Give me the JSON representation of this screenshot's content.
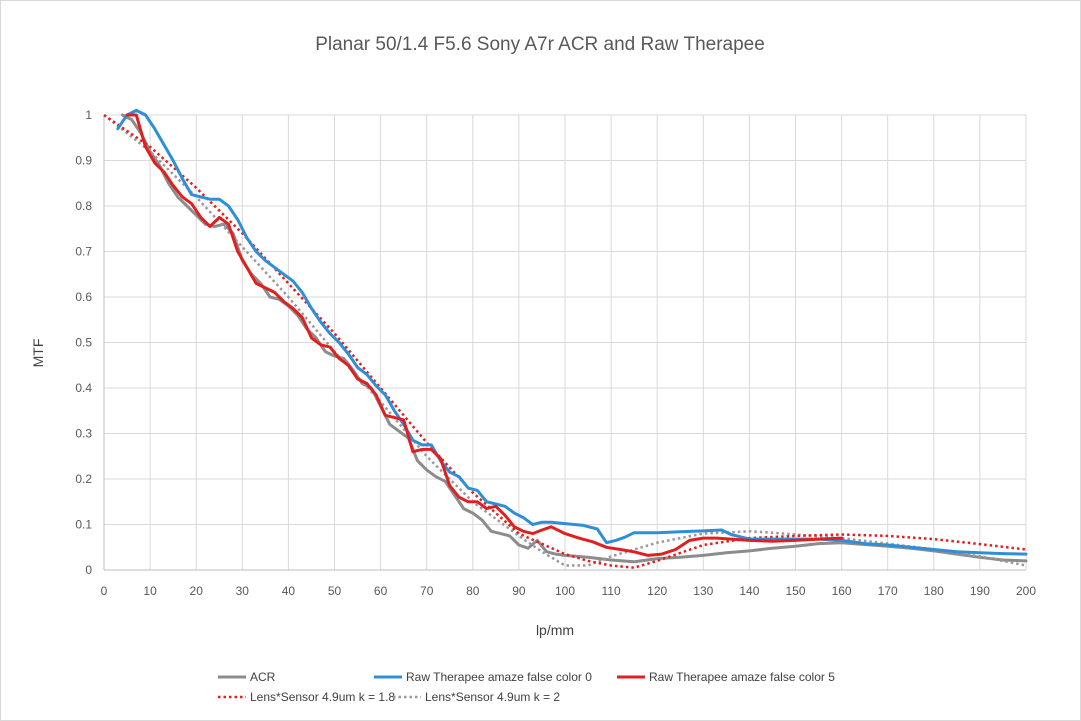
{
  "chart_data": {
    "type": "line",
    "title": "Planar 50/1.4 F5.6 Sony A7r ACR and Raw Therapee",
    "xlabel": "lp/mm",
    "ylabel": "MTF",
    "xlim": [
      0,
      200
    ],
    "ylim": [
      0,
      1
    ],
    "xticks": [
      0,
      10,
      20,
      30,
      40,
      50,
      60,
      70,
      80,
      90,
      100,
      110,
      120,
      130,
      140,
      150,
      160,
      170,
      180,
      190,
      200
    ],
    "yticks": [
      0,
      0.1,
      0.2,
      0.3,
      0.4,
      0.5,
      0.6,
      0.7,
      0.8,
      0.9,
      1
    ],
    "grid": {
      "vertical": true,
      "horizontal": true
    },
    "legend_position": "bottom",
    "series": [
      {
        "name": "ACR",
        "color": "#8c8c8c",
        "dash": "solid",
        "x": [
          4,
          6,
          8,
          10,
          12,
          14,
          16,
          18,
          20,
          22,
          24,
          26,
          28,
          30,
          32,
          34,
          36,
          38,
          40,
          42,
          44,
          46,
          48,
          50,
          52,
          54,
          56,
          58,
          60,
          62,
          64,
          66,
          68,
          70,
          72,
          74,
          76,
          78,
          80,
          82,
          84,
          86,
          88,
          90,
          92,
          94,
          96,
          98,
          100,
          105,
          110,
          115,
          120,
          125,
          130,
          135,
          140,
          145,
          150,
          155,
          160,
          165,
          170,
          175,
          180,
          185,
          190,
          195,
          200
        ],
        "y": [
          1.0,
          0.99,
          0.96,
          0.92,
          0.89,
          0.85,
          0.82,
          0.8,
          0.78,
          0.76,
          0.755,
          0.76,
          0.74,
          0.68,
          0.65,
          0.63,
          0.6,
          0.595,
          0.58,
          0.56,
          0.53,
          0.51,
          0.48,
          0.47,
          0.465,
          0.44,
          0.41,
          0.4,
          0.36,
          0.32,
          0.305,
          0.29,
          0.24,
          0.22,
          0.205,
          0.195,
          0.165,
          0.135,
          0.125,
          0.11,
          0.085,
          0.08,
          0.075,
          0.055,
          0.048,
          0.065,
          0.04,
          0.035,
          0.032,
          0.028,
          0.022,
          0.018,
          0.025,
          0.028,
          0.032,
          0.038,
          0.042,
          0.048,
          0.052,
          0.058,
          0.06,
          0.056,
          0.052,
          0.048,
          0.042,
          0.035,
          0.028,
          0.022,
          0.02
        ]
      },
      {
        "name": "Raw Therapee amaze false color 0",
        "color": "#2f8fd6",
        "dash": "solid",
        "x": [
          3,
          5,
          7,
          9,
          11,
          13,
          15,
          17,
          19,
          21,
          23,
          25,
          27,
          29,
          31,
          33,
          35,
          37,
          39,
          41,
          43,
          45,
          47,
          49,
          51,
          53,
          55,
          57,
          59,
          61,
          63,
          65,
          67,
          69,
          71,
          73,
          75,
          77,
          79,
          81,
          83,
          85,
          87,
          89,
          91,
          93,
          95,
          97,
          100,
          104,
          107,
          109,
          111,
          113,
          115,
          120,
          125,
          130,
          134,
          136,
          140,
          145,
          150,
          155,
          160,
          165,
          170,
          175,
          180,
          185,
          190,
          195,
          200
        ],
        "y": [
          0.97,
          1.0,
          1.01,
          1.0,
          0.97,
          0.935,
          0.9,
          0.86,
          0.825,
          0.82,
          0.815,
          0.815,
          0.8,
          0.77,
          0.73,
          0.7,
          0.68,
          0.665,
          0.65,
          0.635,
          0.61,
          0.575,
          0.545,
          0.52,
          0.5,
          0.475,
          0.445,
          0.43,
          0.405,
          0.385,
          0.35,
          0.32,
          0.285,
          0.275,
          0.275,
          0.24,
          0.215,
          0.205,
          0.18,
          0.175,
          0.15,
          0.145,
          0.14,
          0.125,
          0.115,
          0.1,
          0.105,
          0.105,
          0.102,
          0.098,
          0.09,
          0.06,
          0.065,
          0.072,
          0.082,
          0.082,
          0.084,
          0.086,
          0.088,
          0.078,
          0.068,
          0.068,
          0.068,
          0.068,
          0.065,
          0.058,
          0.055,
          0.05,
          0.045,
          0.04,
          0.038,
          0.036,
          0.035
        ]
      },
      {
        "name": "Raw Therapee amaze false color 5",
        "color": "#e02020",
        "dash": "solid",
        "x": [
          5,
          7,
          9,
          11,
          13,
          15,
          17,
          19,
          21,
          23,
          25,
          27,
          29,
          31,
          33,
          35,
          37,
          39,
          41,
          43,
          45,
          47,
          49,
          51,
          53,
          55,
          57,
          59,
          61,
          63,
          65,
          67,
          69,
          71,
          73,
          75,
          77,
          79,
          81,
          83,
          85,
          87,
          89,
          91,
          93,
          95,
          97,
          100,
          103,
          106,
          109,
          112,
          115,
          118,
          121,
          124,
          127,
          130,
          133,
          136,
          140,
          145,
          150,
          155,
          160
        ],
        "y": [
          1.0,
          1.0,
          0.93,
          0.895,
          0.875,
          0.845,
          0.82,
          0.805,
          0.775,
          0.755,
          0.775,
          0.76,
          0.7,
          0.665,
          0.63,
          0.62,
          0.61,
          0.59,
          0.575,
          0.555,
          0.51,
          0.495,
          0.49,
          0.465,
          0.45,
          0.42,
          0.41,
          0.385,
          0.34,
          0.335,
          0.33,
          0.26,
          0.265,
          0.265,
          0.245,
          0.185,
          0.16,
          0.15,
          0.15,
          0.135,
          0.14,
          0.12,
          0.095,
          0.085,
          0.08,
          0.088,
          0.095,
          0.08,
          0.07,
          0.062,
          0.05,
          0.045,
          0.04,
          0.032,
          0.035,
          0.045,
          0.065,
          0.07,
          0.07,
          0.068,
          0.065,
          0.063,
          0.065,
          0.068,
          0.07
        ]
      },
      {
        "name": "Lens*Sensor 4.9um k = 1.8",
        "color": "#e02020",
        "dash": "dotted",
        "x": [
          0,
          10,
          20,
          30,
          40,
          50,
          60,
          70,
          80,
          90,
          100,
          105,
          110,
          115,
          120,
          130,
          140,
          150,
          160,
          170,
          180,
          190,
          200
        ],
        "y": [
          1.0,
          0.93,
          0.84,
          0.74,
          0.63,
          0.52,
          0.4,
          0.28,
          0.17,
          0.08,
          0.035,
          0.02,
          0.01,
          0.005,
          0.02,
          0.055,
          0.07,
          0.075,
          0.078,
          0.075,
          0.068,
          0.057,
          0.045
        ]
      },
      {
        "name": "Lens*Sensor 4.9um k = 2",
        "color": "#999999",
        "dash": "dotted",
        "x": [
          0,
          10,
          20,
          30,
          40,
          50,
          60,
          70,
          80,
          90,
          95,
          100,
          105,
          110,
          120,
          130,
          140,
          145,
          150,
          160,
          170,
          180,
          190,
          200
        ],
        "y": [
          1.0,
          0.92,
          0.82,
          0.71,
          0.6,
          0.48,
          0.37,
          0.25,
          0.15,
          0.075,
          0.04,
          0.01,
          0.01,
          0.03,
          0.06,
          0.08,
          0.085,
          0.082,
          0.078,
          0.07,
          0.058,
          0.045,
          0.03,
          0.01
        ]
      }
    ]
  }
}
